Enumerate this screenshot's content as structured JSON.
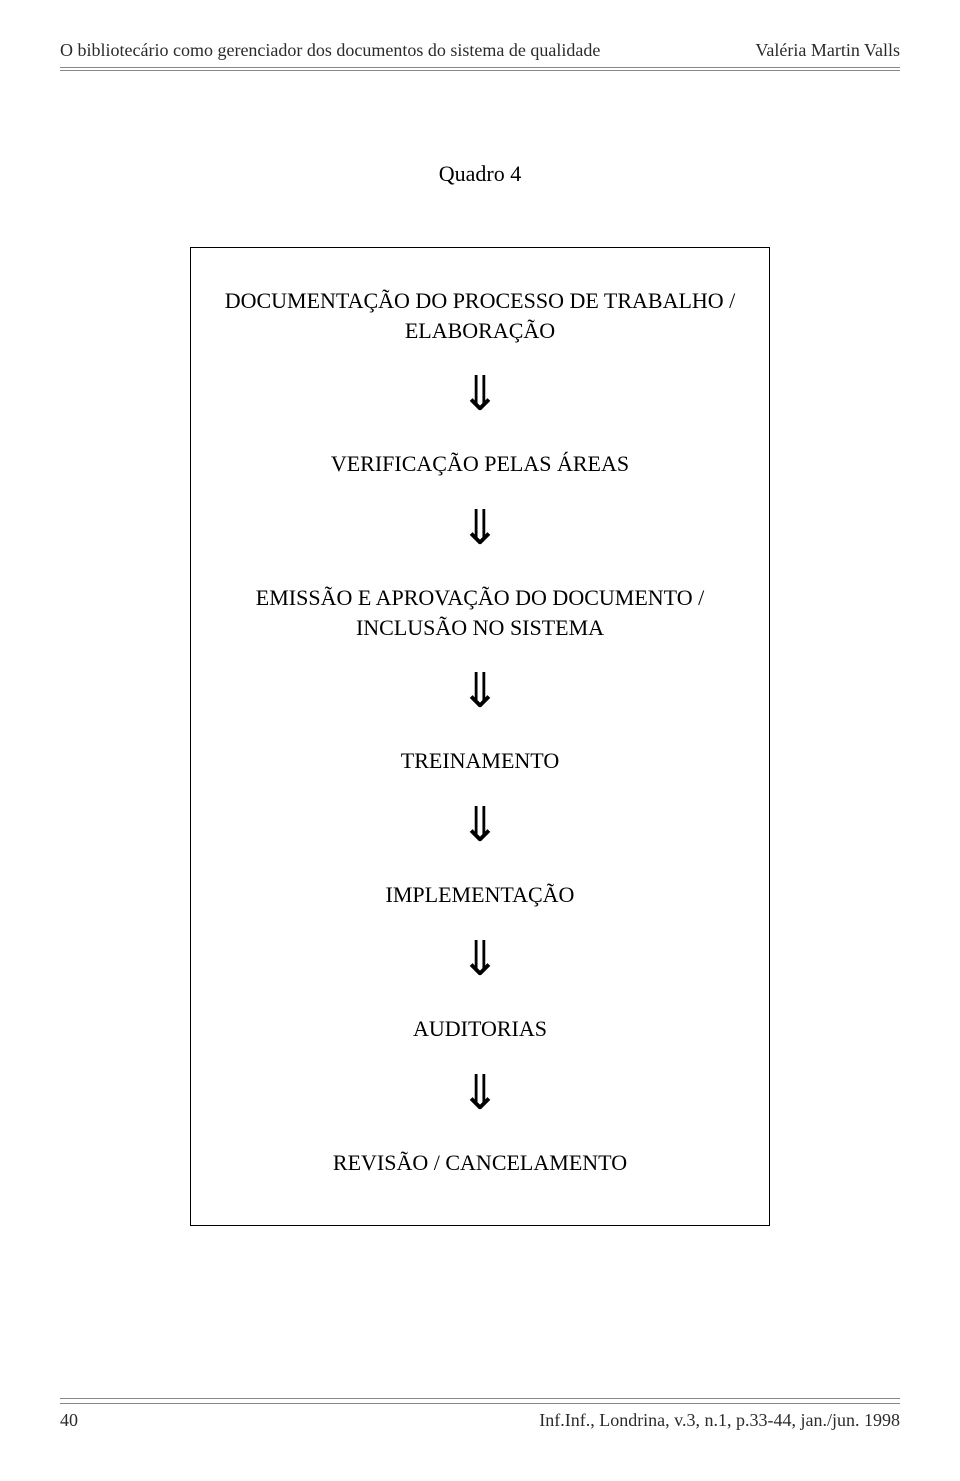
{
  "header": {
    "running_title": "O bibliotecário como gerenciador dos documentos do sistema de qualidade",
    "author": "Valéria Martin Valls"
  },
  "quadro": {
    "title": "Quadro 4",
    "type": "flowchart",
    "box_border_color": "#000000",
    "arrow_glyph": "⇓",
    "steps": [
      "DOCUMENTAÇÃO DO PROCESSO DE TRABALHO / ELABORAÇÃO",
      "VERIFICAÇÃO PELAS ÁREAS",
      "EMISSÃO E APROVAÇÃO DO DOCUMENTO / INCLUSÃO NO SISTEMA",
      "TREINAMENTO",
      "IMPLEMENTAÇÃO",
      "AUDITORIAS",
      "REVISÃO / CANCELAMENTO"
    ],
    "font_family": "Times New Roman",
    "step_fontsize_pt": 16,
    "arrow_fontsize_pt": 36,
    "background_color": "#ffffff"
  },
  "footer": {
    "page_number": "40",
    "citation": "Inf.Inf., Londrina, v.3, n.1, p.33-44, jan./jun. 1998"
  }
}
